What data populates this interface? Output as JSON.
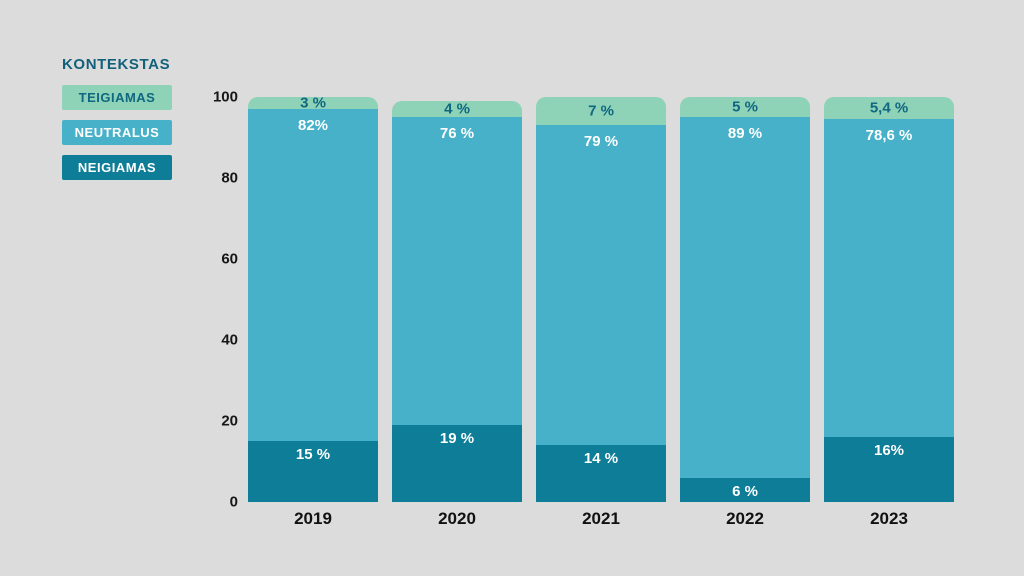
{
  "background_color": "#dcdcdc",
  "legend": {
    "title": "KONTEKSTAS",
    "items": [
      {
        "label": "TEIGIAMAS",
        "color": "#8ed2b8",
        "text_color": "#0f6880"
      },
      {
        "label": "NEUTRALUS",
        "color": "#46b1c9",
        "text_color": "#ffffff"
      },
      {
        "label": "NEIGIAMAS",
        "color": "#0d7d98",
        "text_color": "#ffffff"
      }
    ]
  },
  "chart_data": {
    "type": "bar",
    "stacked": true,
    "title": "",
    "xlabel": "",
    "ylabel": "",
    "categories": [
      "2019",
      "2020",
      "2021",
      "2022",
      "2023"
    ],
    "series": [
      {
        "name": "TEIGIAMAS",
        "values": [
          3,
          4,
          7,
          5,
          5.4
        ],
        "labels": [
          "3 %",
          "4 %",
          "7 %",
          "5 %",
          "5,4 %"
        ],
        "color": "#8ed2b8",
        "label_color": "#0f6880"
      },
      {
        "name": "NEUTRALUS",
        "values": [
          82,
          76,
          79,
          89,
          78.6
        ],
        "labels": [
          "82%",
          "76 %",
          "79 %",
          "89 %",
          "78,6 %"
        ],
        "color": "#46b1c9",
        "label_color": "#ffffff"
      },
      {
        "name": "NEIGIAMAS",
        "values": [
          15,
          19,
          14,
          6,
          16
        ],
        "labels": [
          "15 %",
          "19 %",
          "14 %",
          "6 %",
          "16%"
        ],
        "color": "#0d7d98",
        "label_color": "#ffffff"
      }
    ],
    "ylim": [
      0,
      100
    ],
    "yticks": [
      0,
      20,
      40,
      60,
      80,
      100
    ],
    "grid": false,
    "legend_position": "top-left"
  }
}
